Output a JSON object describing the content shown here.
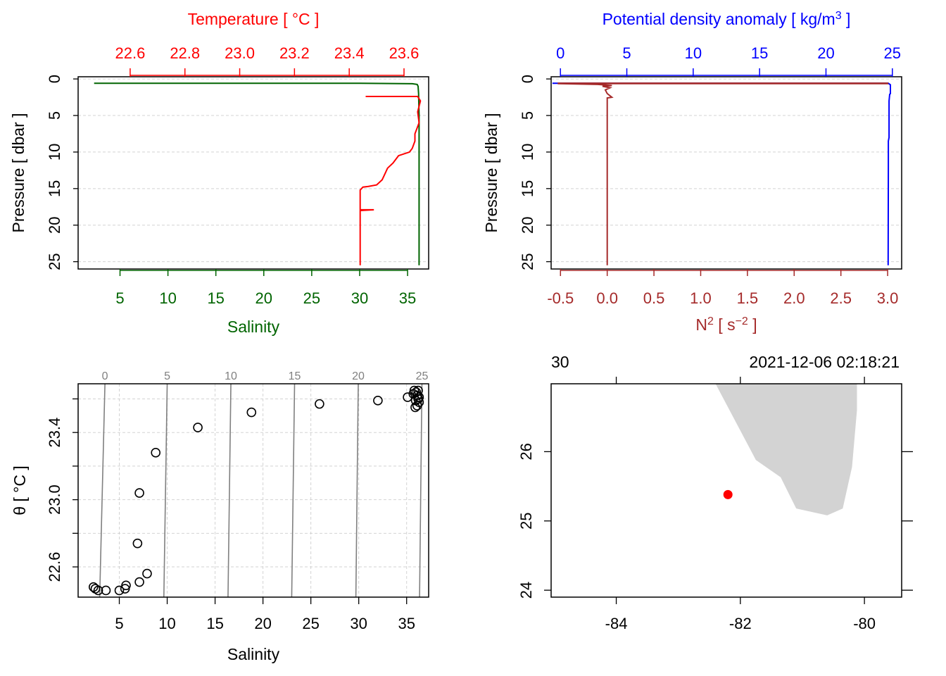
{
  "colors": {
    "temperature": "#ff0000",
    "salinity": "#006400",
    "density": "#0000ff",
    "n2": "#a52a2a",
    "ink": "#000000",
    "grid": "#d3d3d3",
    "isopycnal": "#808080",
    "land": "#d3d3d3",
    "station": "#ff0000"
  },
  "chart_data": [
    {
      "type": "line",
      "panel": "profile-temperature-salinity",
      "title": "Temperature [ °C ]",
      "xlabel": "Salinity",
      "ylabel": "Pressure [ dbar ]",
      "ylim": [
        26,
        -0.3
      ],
      "yticks": [
        0,
        5,
        10,
        15,
        20,
        25
      ],
      "top_axis": {
        "label": "Temperature [ °C ]",
        "range": [
          22.41,
          23.69
        ],
        "ticks": [
          22.6,
          22.8,
          23.0,
          23.2,
          23.4,
          23.6
        ],
        "tick_labels": [
          "22.6",
          "22.8",
          "23.0",
          "23.2",
          "23.4",
          "23.6"
        ]
      },
      "bottom_axis": {
        "label": "Salinity",
        "range": [
          0.63,
          37.2
        ],
        "ticks": [
          5,
          10,
          15,
          20,
          25,
          30,
          35
        ],
        "tick_labels": [
          "5",
          "10",
          "15",
          "20",
          "25",
          "30",
          "35"
        ]
      },
      "series": [
        {
          "name": "Salinity",
          "axis": "bottom",
          "points": [
            [
              2.3,
              0.6
            ],
            [
              30,
              0.6
            ],
            [
              35.5,
              0.65
            ],
            [
              36.0,
              0.75
            ],
            [
              36.1,
              1.0
            ],
            [
              36.15,
              2.0
            ],
            [
              36.2,
              5.0
            ],
            [
              36.2,
              10.0
            ],
            [
              36.2,
              15.0
            ],
            [
              36.2,
              20.0
            ],
            [
              36.2,
              25.5
            ]
          ]
        },
        {
          "name": "Temperature",
          "axis": "top",
          "points": [
            [
              23.46,
              2.4
            ],
            [
              23.65,
              2.4
            ],
            [
              23.66,
              3.0
            ],
            [
              23.65,
              4.5
            ],
            [
              23.655,
              6.0
            ],
            [
              23.64,
              7.5
            ],
            [
              23.64,
              8.5
            ],
            [
              23.63,
              9.5
            ],
            [
              23.62,
              10.0
            ],
            [
              23.58,
              10.5
            ],
            [
              23.56,
              11.5
            ],
            [
              23.54,
              12.2
            ],
            [
              23.53,
              13.0
            ],
            [
              23.52,
              13.8
            ],
            [
              23.5,
              14.5
            ],
            [
              23.47,
              14.7
            ],
            [
              23.45,
              14.8
            ],
            [
              23.44,
              15.2
            ],
            [
              23.44,
              17.9
            ],
            [
              23.49,
              17.9
            ],
            [
              23.44,
              18.0
            ],
            [
              23.44,
              25.5
            ]
          ]
        }
      ]
    },
    {
      "type": "line",
      "panel": "profile-density-n2",
      "title": "Potential density anomaly [ kg/m3 ]",
      "xlabel": "N2 [ s-2 ]",
      "ylabel": "Pressure [ dbar ]",
      "ylim": [
        26,
        -0.3
      ],
      "yticks": [
        0,
        5,
        10,
        15,
        20,
        25
      ],
      "top_axis": {
        "label": "Potential density anomaly [ kg/m3 ]",
        "range": [
          -0.7,
          25.7
        ],
        "ticks": [
          0,
          5,
          10,
          15,
          20,
          25
        ],
        "tick_labels": [
          "0",
          "5",
          "10",
          "15",
          "20",
          "25"
        ]
      },
      "bottom_axis": {
        "label": "N2 [ s-2 ]",
        "range": [
          -0.6,
          3.15
        ],
        "ticks": [
          -0.5,
          0.0,
          0.5,
          1.0,
          1.5,
          2.0,
          2.5,
          3.0
        ],
        "tick_labels": [
          "-0.5",
          "0.0",
          "0.5",
          "1.0",
          "1.5",
          "2.0",
          "2.5",
          "3.0"
        ]
      },
      "series": [
        {
          "name": "Potential density anomaly",
          "axis": "top",
          "points": [
            [
              -0.6,
              0.6
            ],
            [
              24.7,
              0.6
            ],
            [
              24.85,
              0.8
            ],
            [
              24.85,
              2.0
            ],
            [
              24.8,
              2.1
            ],
            [
              24.75,
              3.0
            ],
            [
              24.75,
              8.0
            ],
            [
              24.7,
              8.5
            ],
            [
              24.7,
              12.0
            ],
            [
              24.68,
              25.5
            ]
          ]
        },
        {
          "name": "N2",
          "axis": "bottom",
          "points": [
            [
              -0.53,
              0.58
            ],
            [
              3.0,
              0.58
            ],
            [
              3.0,
              0.64
            ],
            [
              -0.53,
              0.64
            ],
            [
              -0.1,
              0.75
            ],
            [
              0.05,
              0.9
            ],
            [
              -0.05,
              1.0
            ],
            [
              0.03,
              1.2
            ],
            [
              -0.02,
              1.5
            ],
            [
              0.0,
              2.0
            ],
            [
              0.05,
              2.5
            ],
            [
              0.0,
              2.6
            ],
            [
              0.0,
              25.5
            ]
          ]
        }
      ]
    },
    {
      "type": "scatter",
      "panel": "ts-diagram",
      "xlabel": "Salinity",
      "ylabel": "θ [ °C ]",
      "xlim": [
        0.7,
        37.3
      ],
      "ylim": [
        22.42,
        23.69
      ],
      "xticks": [
        5,
        10,
        15,
        20,
        25,
        30,
        35
      ],
      "xtick_labels": [
        "5",
        "10",
        "15",
        "20",
        "25",
        "30",
        "35"
      ],
      "yticks": [
        22.6,
        23.0,
        23.4
      ],
      "ytick_labels": [
        "22.6",
        "23.0",
        "23.4"
      ],
      "yminor_ticks": [
        22.8,
        23.2,
        23.6
      ],
      "isopycnal_labels": [
        "0",
        "5",
        "10",
        "15",
        "20",
        "25"
      ],
      "isopycnals": [
        {
          "label": "0",
          "bottom_s": 2.95,
          "top_s": 3.5
        },
        {
          "label": "5",
          "bottom_s": 9.65,
          "top_s": 10.0
        },
        {
          "label": "10",
          "bottom_s": 16.35,
          "top_s": 16.65
        },
        {
          "label": "15",
          "bottom_s": 23.0,
          "top_s": 23.3
        },
        {
          "label": "20",
          "bottom_s": 29.7,
          "top_s": 29.95
        },
        {
          "label": "25",
          "bottom_s": 36.35,
          "top_s": 36.6
        }
      ],
      "points": [
        [
          2.3,
          22.48
        ],
        [
          2.5,
          22.47
        ],
        [
          2.8,
          22.46
        ],
        [
          3.6,
          22.46
        ],
        [
          5.0,
          22.46
        ],
        [
          5.6,
          22.47
        ],
        [
          5.7,
          22.49
        ],
        [
          7.1,
          22.51
        ],
        [
          7.9,
          22.56
        ],
        [
          6.9,
          22.74
        ],
        [
          7.1,
          23.04
        ],
        [
          8.8,
          23.28
        ],
        [
          13.2,
          23.43
        ],
        [
          18.8,
          23.52
        ],
        [
          25.9,
          23.57
        ],
        [
          32.0,
          23.59
        ],
        [
          35.1,
          23.61
        ],
        [
          35.7,
          23.63
        ],
        [
          35.8,
          23.65
        ],
        [
          36.0,
          23.64
        ],
        [
          36.1,
          23.62
        ],
        [
          36.2,
          23.6
        ],
        [
          36.3,
          23.58
        ],
        [
          36.1,
          23.56
        ],
        [
          35.9,
          23.55
        ],
        [
          36.2,
          23.65
        ],
        [
          36.3,
          23.61
        ],
        [
          35.95,
          23.59
        ]
      ]
    },
    {
      "type": "map",
      "panel": "station-map",
      "top_label_left": "30",
      "top_label_right": "2021-12-06 02:18:21",
      "xlim": [
        -85.05,
        -79.4
      ],
      "ylim": [
        23.9,
        26.98
      ],
      "xticks": [
        -84,
        -82,
        -80
      ],
      "xtick_labels": [
        "-84",
        "-82",
        "-80"
      ],
      "yticks": [
        24,
        25,
        26
      ],
      "ytick_labels": [
        "24",
        "25",
        "26"
      ],
      "station": {
        "lon": -82.2,
        "lat": 25.38
      },
      "land_polygon": [
        [
          -82.4,
          26.98
        ],
        [
          -81.75,
          25.88
        ],
        [
          -81.35,
          25.63
        ],
        [
          -81.1,
          25.18
        ],
        [
          -80.6,
          25.08
        ],
        [
          -80.35,
          25.18
        ],
        [
          -80.2,
          25.78
        ],
        [
          -80.12,
          26.6
        ],
        [
          -80.12,
          26.98
        ]
      ]
    }
  ]
}
